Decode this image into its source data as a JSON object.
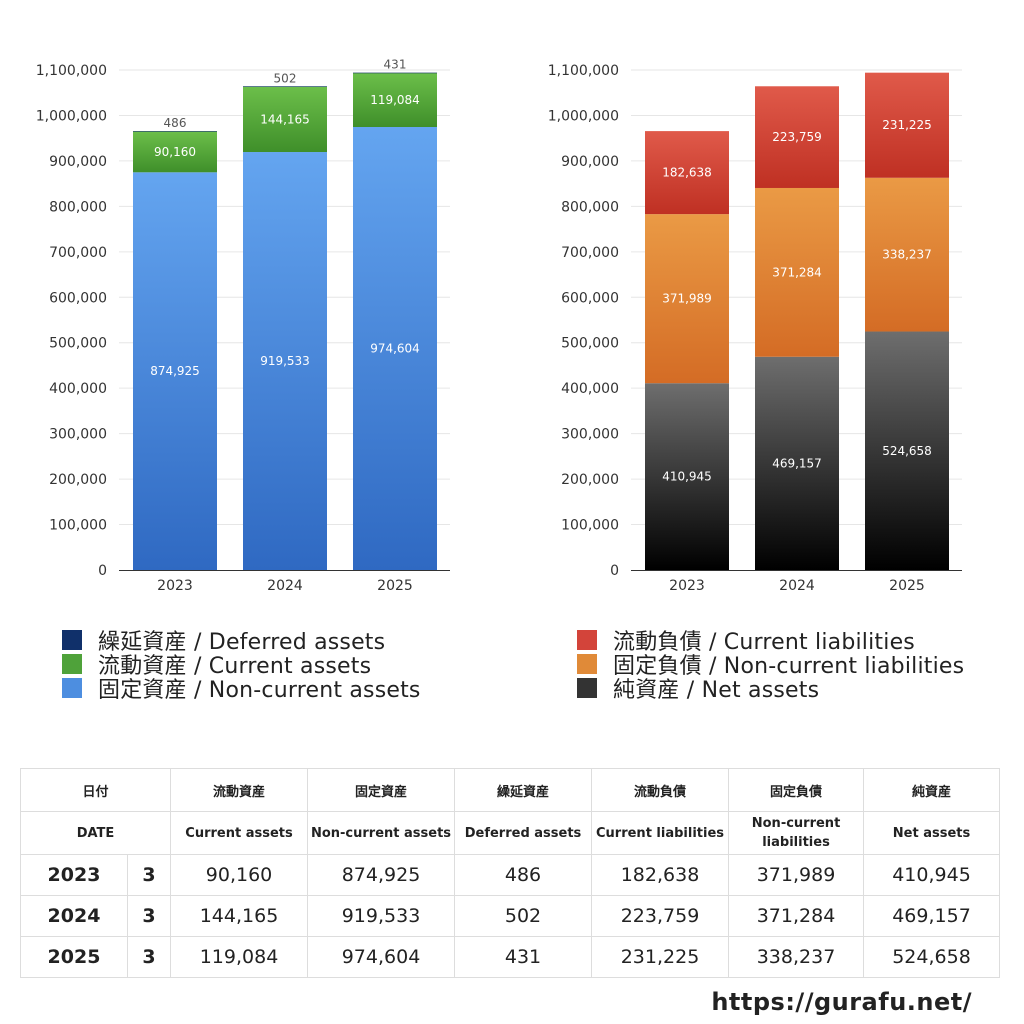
{
  "chart_data": [
    {
      "type": "bar",
      "stacked": true,
      "categories": [
        "2023",
        "2024",
        "2025"
      ],
      "ylim": [
        0,
        1100000
      ],
      "yticks": [
        0,
        100000,
        200000,
        300000,
        400000,
        500000,
        600000,
        700000,
        800000,
        900000,
        1000000,
        1100000
      ],
      "ytick_labels": [
        "0",
        "100,000",
        "200,000",
        "300,000",
        "400,000",
        "500,000",
        "600,000",
        "700,000",
        "800,000",
        "900,000",
        "1,000,000",
        "1,100,000"
      ],
      "grid": true,
      "series": [
        {
          "name": "固定資産 / Non-current assets",
          "values": [
            874925,
            919533,
            974604
          ],
          "labels": [
            "874,925",
            "919,533",
            "974,604"
          ],
          "color_top": "#64a5f0",
          "color_bottom": "#2f69c2",
          "label_color": "#ffffff"
        },
        {
          "name": "流動資産 / Current assets",
          "values": [
            90160,
            144165,
            119084
          ],
          "labels": [
            "90,160",
            "144,165",
            "119,084"
          ],
          "color_top": "#6cbf4a",
          "color_bottom": "#3f8f2a",
          "label_color": "#ffffff"
        },
        {
          "name": "繰延資産 / Deferred assets",
          "values": [
            486,
            502,
            431
          ],
          "labels": [
            "486",
            "502",
            "431"
          ],
          "color_top": "#10306a",
          "color_bottom": "#10306a",
          "label_color": "#555555"
        }
      ]
    },
    {
      "type": "bar",
      "stacked": true,
      "categories": [
        "2023",
        "2024",
        "2025"
      ],
      "ylim": [
        0,
        1100000
      ],
      "yticks": [
        0,
        100000,
        200000,
        300000,
        400000,
        500000,
        600000,
        700000,
        800000,
        900000,
        1000000,
        1100000
      ],
      "ytick_labels": [
        "0",
        "100,000",
        "200,000",
        "300,000",
        "400,000",
        "500,000",
        "600,000",
        "700,000",
        "800,000",
        "900,000",
        "1,000,000",
        "1,100,000"
      ],
      "grid": true,
      "series": [
        {
          "name": "純資産 / Net assets",
          "values": [
            410945,
            469157,
            524658
          ],
          "labels": [
            "410,945",
            "469,157",
            "524,658"
          ],
          "color_top": "#6e6e6e",
          "color_bottom": "#000000",
          "label_color": "#ffffff"
        },
        {
          "name": "固定負債 / Non-current liabilities",
          "values": [
            371989,
            371284,
            338237
          ],
          "labels": [
            "371,989",
            "371,284",
            "338,237"
          ],
          "color_top": "#ea9a45",
          "color_bottom": "#d46c25",
          "label_color": "#ffffff"
        },
        {
          "name": "流動負債 / Current liabilities",
          "values": [
            182638,
            223759,
            231225
          ],
          "labels": [
            "182,638",
            "223,759",
            "231,225"
          ],
          "color_top": "#e05a4a",
          "color_bottom": "#bf3023",
          "label_color": "#ffffff"
        }
      ]
    }
  ],
  "legend_left": [
    {
      "label": "繰延資産 / Deferred assets",
      "color": "#10306a"
    },
    {
      "label": "流動資産 / Current assets",
      "color": "#4fa23a"
    },
    {
      "label": "固定資産 / Non-current assets",
      "color": "#4d8ee0"
    }
  ],
  "legend_right": [
    {
      "label": "流動負債 / Current liabilities",
      "color": "#d3443a"
    },
    {
      "label": "固定負債 / Non-current liabilities",
      "color": "#e08a38"
    },
    {
      "label": "純資産 / Net assets",
      "color": "#333333"
    }
  ],
  "table": {
    "header_jp": {
      "date": "日付",
      "current_assets": "流動資産",
      "noncurrent_assets": "固定資産",
      "deferred_assets": "繰延資産",
      "current_liabilities": "流動負債",
      "noncurrent_liabilities": "固定負債",
      "net_assets": "純資産"
    },
    "header_en": {
      "date": "DATE",
      "current_assets": "Current assets",
      "noncurrent_assets": "Non-current assets",
      "deferred_assets": "Deferred assets",
      "current_liabilities": "Current liabilities",
      "noncurrent_liabilities": "Non-current liabilities",
      "net_assets": "Net assets"
    },
    "rows": [
      {
        "year": "2023",
        "month": "3",
        "values": [
          "90,160",
          "874,925",
          "486",
          "182,638",
          "371,989",
          "410,945"
        ]
      },
      {
        "year": "2024",
        "month": "3",
        "values": [
          "144,165",
          "919,533",
          "502",
          "223,759",
          "371,284",
          "469,157"
        ]
      },
      {
        "year": "2025",
        "month": "3",
        "values": [
          "119,084",
          "974,604",
          "431",
          "231,225",
          "338,237",
          "524,658"
        ]
      }
    ]
  },
  "site_url": "https://gurafu.net/"
}
